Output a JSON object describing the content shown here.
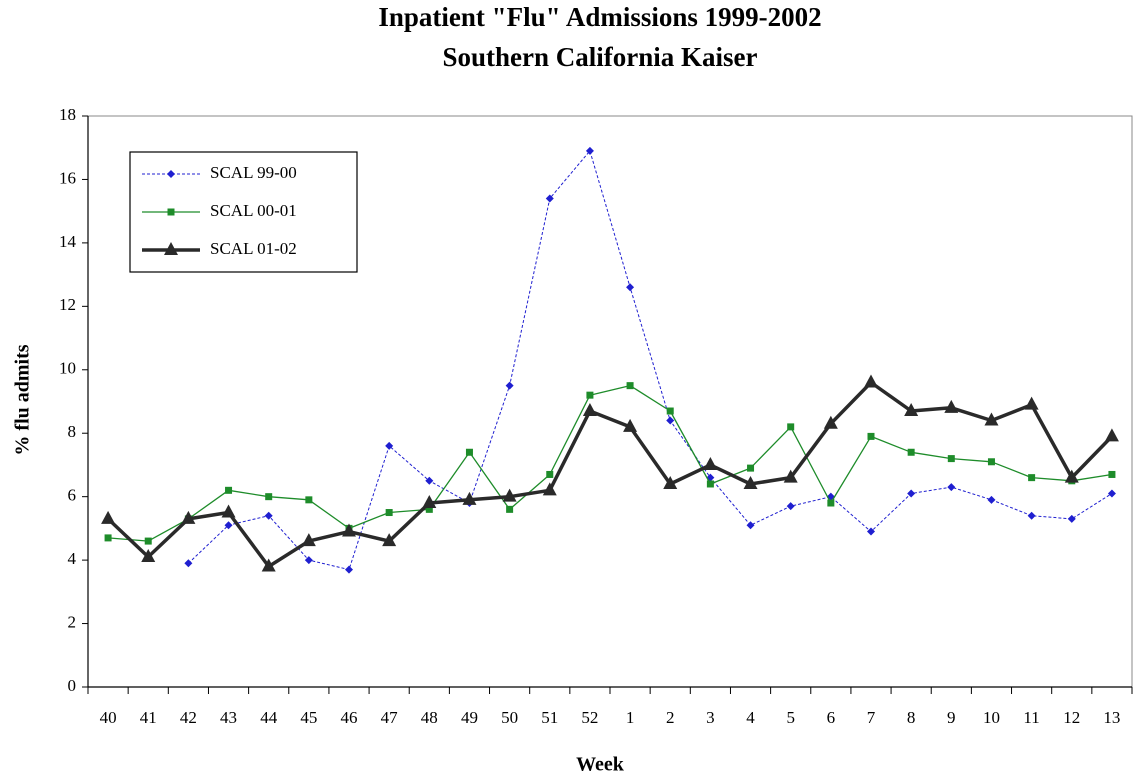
{
  "chart_data": {
    "type": "line",
    "title": "Inpatient \"Flu\" Admissions 1999-2002",
    "subtitle": "Southern California Kaiser",
    "x_label": "Week",
    "y_label": "% flu admits",
    "categories": [
      "40",
      "41",
      "42",
      "43",
      "44",
      "45",
      "46",
      "47",
      "48",
      "49",
      "50",
      "51",
      "52",
      "1",
      "2",
      "3",
      "4",
      "5",
      "6",
      "7",
      "8",
      "9",
      "10",
      "11",
      "12",
      "13"
    ],
    "ylim": [
      0,
      18
    ],
    "yticks": [
      0,
      2,
      4,
      6,
      8,
      10,
      12,
      14,
      16,
      18
    ],
    "grid": false,
    "legend": "upper left",
    "series": [
      {
        "name": "SCAL 99-00",
        "color": "#1f1fd0",
        "marker": "diamond",
        "dashed": true,
        "values": [
          null,
          null,
          3.9,
          5.1,
          5.4,
          4.0,
          3.7,
          7.6,
          6.5,
          5.8,
          9.5,
          15.4,
          16.9,
          12.6,
          8.4,
          6.6,
          5.1,
          5.7,
          6.0,
          4.9,
          6.1,
          6.3,
          5.9,
          5.4,
          5.3,
          6.1
        ]
      },
      {
        "name": "SCAL 00-01",
        "color": "#1e8c2a",
        "marker": "square",
        "dashed": false,
        "values": [
          4.7,
          4.6,
          5.3,
          6.2,
          6.0,
          5.9,
          5.0,
          5.5,
          5.6,
          7.4,
          5.6,
          6.7,
          9.2,
          9.5,
          8.7,
          6.4,
          6.9,
          8.2,
          5.8,
          7.9,
          7.4,
          7.2,
          7.1,
          6.6,
          6.5,
          6.7
        ]
      },
      {
        "name": "SCAL 01-02",
        "color": "#2a2a2a",
        "marker": "triangle",
        "dashed": false,
        "values": [
          5.3,
          4.1,
          5.3,
          5.5,
          3.8,
          4.6,
          4.9,
          4.6,
          5.8,
          5.9,
          6.0,
          6.2,
          8.7,
          8.2,
          6.4,
          7.0,
          6.4,
          6.6,
          8.3,
          9.6,
          8.7,
          8.8,
          8.4,
          8.9,
          6.6,
          7.9
        ]
      }
    ]
  }
}
